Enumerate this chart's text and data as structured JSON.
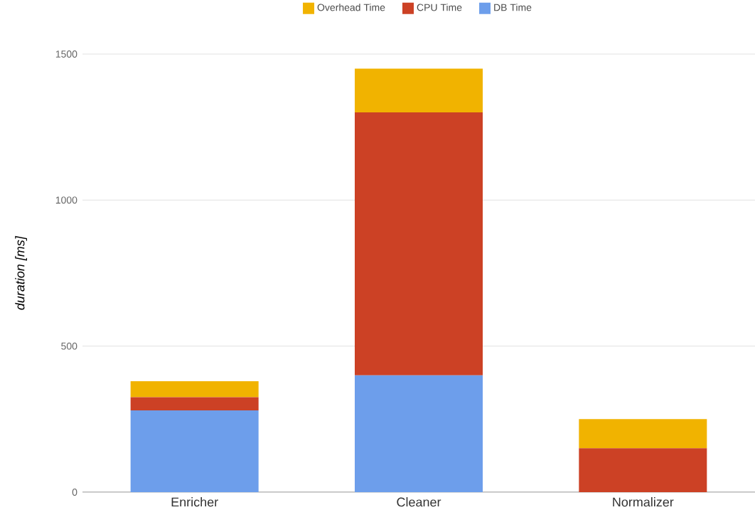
{
  "chart_data": {
    "type": "bar",
    "stacked": true,
    "ylabel": "*duration [ms]*",
    "categories": [
      "Enricher",
      "Cleaner",
      "Normalizer"
    ],
    "series": [
      {
        "name": "DB Time",
        "color": "#6d9eeb",
        "values": [
          280,
          400,
          0
        ]
      },
      {
        "name": "CPU Time",
        "color": "#cc4125",
        "values": [
          45,
          900,
          150
        ]
      },
      {
        "name": "Overhead Time",
        "color": "#f1b300",
        "values": [
          55,
          150,
          100
        ]
      }
    ],
    "ylim": [
      0,
      1500
    ],
    "yticks": [
      0,
      500,
      1000,
      1500
    ],
    "grid": "y",
    "legend": "top"
  }
}
